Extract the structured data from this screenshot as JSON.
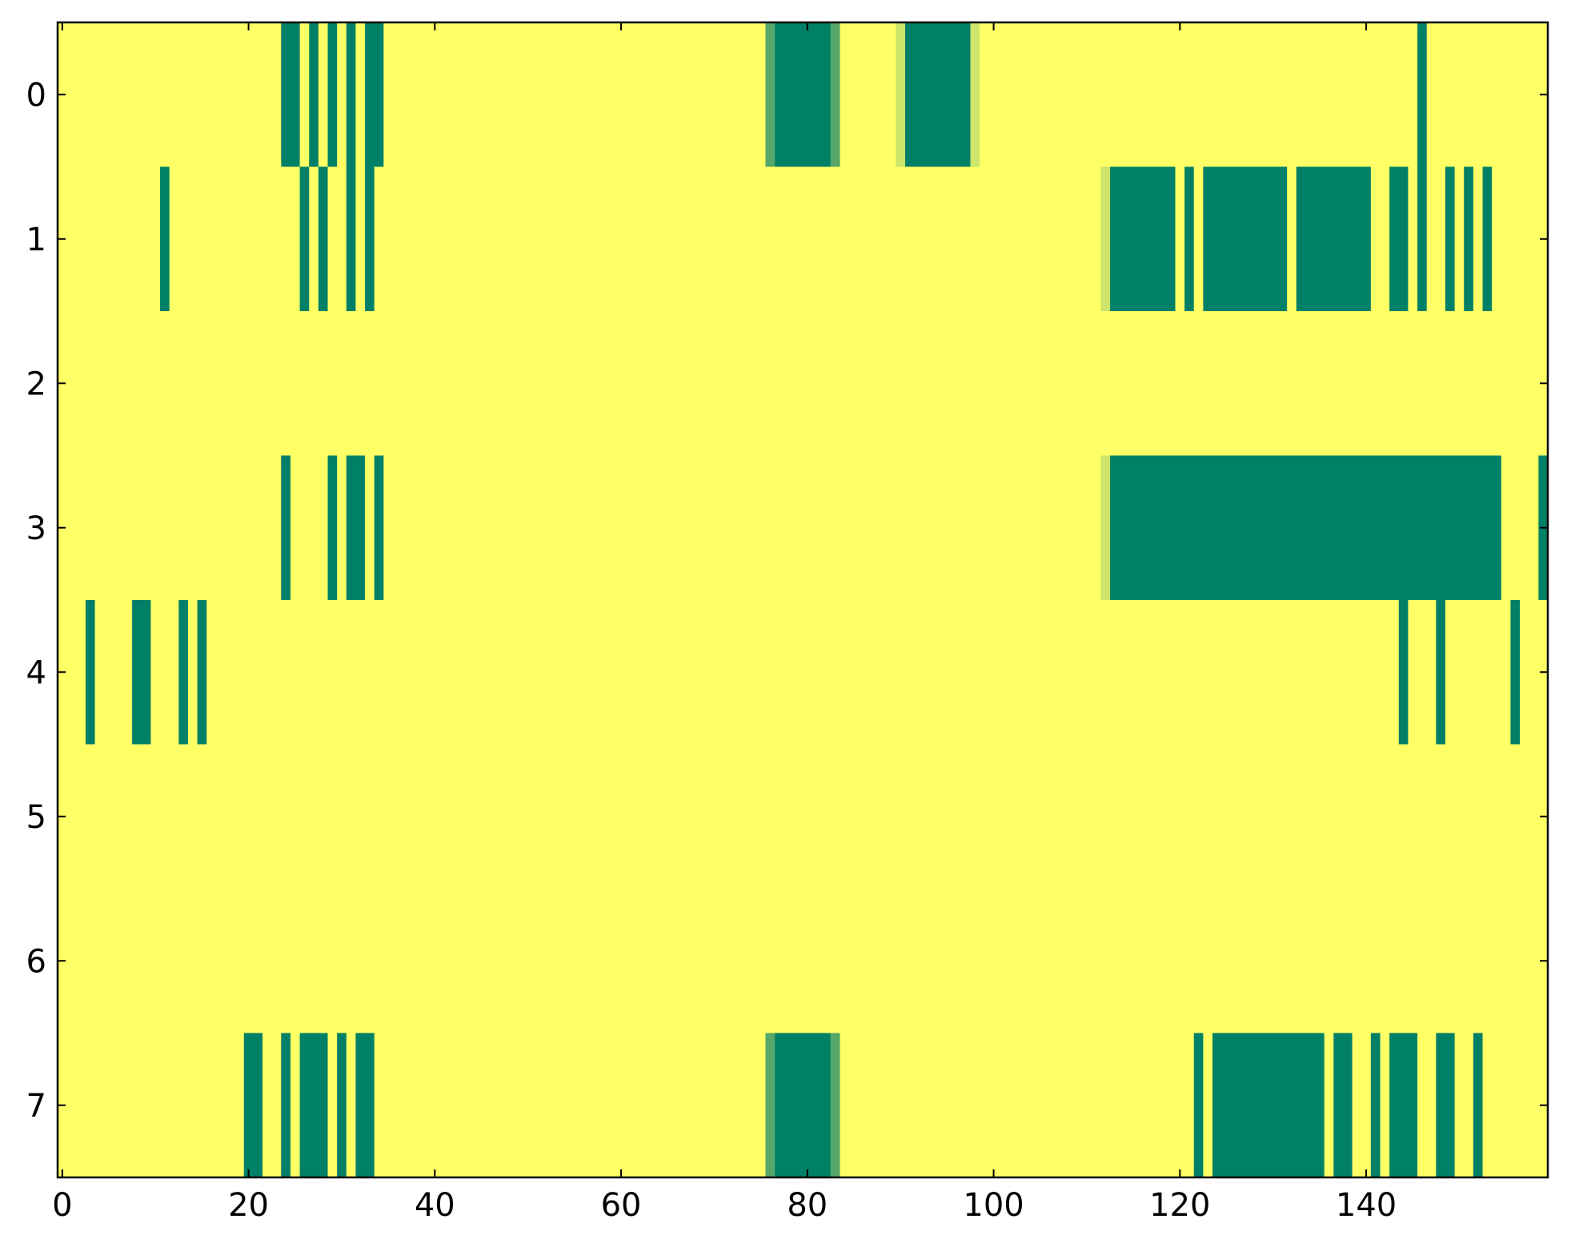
{
  "chart_data": {
    "type": "heatmap",
    "title": "",
    "xlabel": "",
    "ylabel": "",
    "xlim": [
      -0.5,
      159.5
    ],
    "ylim": [
      7.5,
      -0.5
    ],
    "xticks": [
      0,
      20,
      40,
      60,
      80,
      100,
      120,
      140
    ],
    "yticks": [
      0,
      1,
      2,
      3,
      4,
      5,
      6,
      7
    ],
    "grid": false,
    "legend": "none",
    "background_value": 0,
    "colors": {
      "background": "#ffff66",
      "cell": "#008066",
      "cell_mid": "#55a868",
      "cell_light": "#cce56a"
    },
    "rows": [
      {
        "row": 0,
        "spans": [
          [
            24,
            25,
            1
          ],
          [
            27,
            27,
            1
          ],
          [
            29,
            29,
            1
          ],
          [
            31,
            31,
            1
          ],
          [
            33,
            34,
            1
          ],
          [
            76,
            76,
            0.7
          ],
          [
            77,
            82,
            1
          ],
          [
            83,
            83,
            0.7
          ],
          [
            90,
            90,
            0.2
          ],
          [
            91,
            97,
            1
          ],
          [
            98,
            98,
            0.2
          ],
          [
            146,
            146,
            1
          ]
        ]
      },
      {
        "row": 1,
        "spans": [
          [
            11,
            11,
            1
          ],
          [
            26,
            26,
            1
          ],
          [
            28,
            28,
            1
          ],
          [
            31,
            31,
            1
          ],
          [
            33,
            33,
            1
          ],
          [
            112,
            112,
            0.2
          ],
          [
            113,
            119,
            1
          ],
          [
            121,
            121,
            1
          ],
          [
            123,
            131,
            1
          ],
          [
            133,
            140,
            1
          ],
          [
            143,
            144,
            1
          ],
          [
            146,
            146,
            1
          ],
          [
            149,
            149,
            1
          ],
          [
            151,
            151,
            1
          ],
          [
            153,
            153,
            1
          ]
        ]
      },
      {
        "row": 2,
        "spans": []
      },
      {
        "row": 3,
        "spans": [
          [
            24,
            24,
            1
          ],
          [
            29,
            29,
            1
          ],
          [
            31,
            32,
            1
          ],
          [
            34,
            34,
            1
          ],
          [
            112,
            112,
            0.2
          ],
          [
            113,
            154,
            1
          ],
          [
            159,
            159,
            1
          ]
        ]
      },
      {
        "row": 4,
        "spans": [
          [
            3,
            3,
            1
          ],
          [
            8,
            9,
            1
          ],
          [
            13,
            13,
            1
          ],
          [
            15,
            15,
            1
          ],
          [
            144,
            144,
            1
          ],
          [
            148,
            148,
            1
          ],
          [
            156,
            156,
            1
          ]
        ]
      },
      {
        "row": 5,
        "spans": []
      },
      {
        "row": 6,
        "spans": []
      },
      {
        "row": 7,
        "spans": [
          [
            20,
            21,
            1
          ],
          [
            24,
            24,
            1
          ],
          [
            26,
            28,
            1
          ],
          [
            30,
            30,
            1
          ],
          [
            32,
            33,
            1
          ],
          [
            76,
            76,
            0.7
          ],
          [
            77,
            82,
            1
          ],
          [
            83,
            83,
            0.7
          ],
          [
            122,
            122,
            1
          ],
          [
            124,
            135,
            1
          ],
          [
            137,
            138,
            1
          ],
          [
            141,
            141,
            1
          ],
          [
            143,
            145,
            1
          ],
          [
            148,
            149,
            1
          ],
          [
            152,
            152,
            1
          ]
        ]
      }
    ]
  }
}
